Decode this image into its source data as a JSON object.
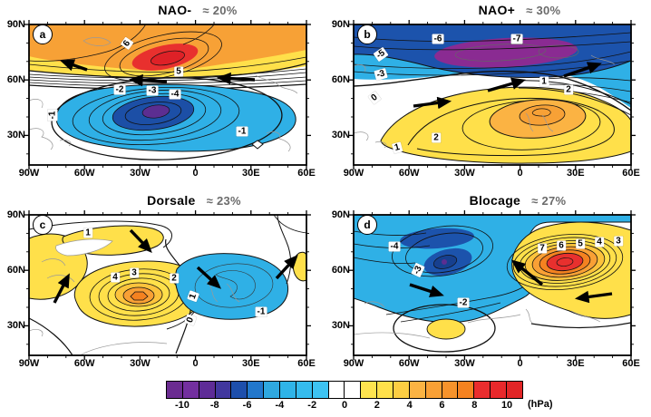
{
  "figure": {
    "description": "Four North-Atlantic weather regime composite maps with sea-level pressure anomaly contours",
    "unit_label": "(hPa)"
  },
  "axis": {
    "x": [
      "90W",
      "60W",
      "30W",
      "0",
      "30E",
      "60E"
    ],
    "y": [
      "90N",
      "60N",
      "30N"
    ]
  },
  "panels": [
    {
      "letter": "a",
      "title": "NAO-",
      "percent": "≈ 20%",
      "contour_labels": [
        "6",
        "5",
        "-2",
        "-3",
        "-4",
        "-1",
        "-1"
      ]
    },
    {
      "letter": "b",
      "title": "NAO+",
      "percent": "≈ 30%",
      "contour_labels": [
        "-6",
        "-7",
        "-5",
        "-3",
        "0",
        "1",
        "2",
        "2",
        "1"
      ]
    },
    {
      "letter": "c",
      "title": "Dorsale",
      "percent": "≈ 23%",
      "contour_labels": [
        "1",
        "4",
        "3",
        "2",
        "1",
        "0",
        "-1"
      ]
    },
    {
      "letter": "d",
      "title": "Blocage",
      "percent": "≈ 27%",
      "contour_labels": [
        "-4",
        "-3",
        "-2",
        "7",
        "6",
        "5",
        "4",
        "3"
      ]
    }
  ],
  "colorbar": {
    "tick_labels": [
      "-10",
      "-8",
      "-6",
      "-4",
      "-2",
      "0",
      "2",
      "4",
      "6",
      "8",
      "10"
    ],
    "unit": "(hPa)",
    "min": -11,
    "max": 11,
    "step": 1,
    "colors": [
      "#6B2C91",
      "#732F9F",
      "#5E2C97",
      "#41379E",
      "#1E4FAC",
      "#2277CC",
      "#2FA8DF",
      "#2FB4E8",
      "#35BCEE",
      "#3DC3F2",
      "#FFFFFF",
      "#FFFFFF",
      "#FFE44F",
      "#FFE04A",
      "#FDCE43",
      "#FBB343",
      "#F9A035",
      "#F7932B",
      "#F58220",
      "#EA2D2E",
      "#E8282B",
      "#E22526"
    ]
  },
  "chart_data": [
    {
      "type": "heatmap",
      "subtype": "filled-contour map",
      "panel": "a",
      "title": "NAO-",
      "frequency_label": "≈ 20%",
      "x_axis": {
        "label": "longitude",
        "ticks": [
          "90W",
          "60W",
          "30W",
          "0",
          "30E",
          "60E"
        ]
      },
      "y_axis": {
        "label": "latitude",
        "ticks": [
          "90N",
          "60N",
          "30N"
        ]
      },
      "units": "hPa",
      "contour_interval_hPa": 1,
      "anomaly_centers": [
        {
          "sign": "positive",
          "approx_lon": "30W",
          "approx_lat": "66N",
          "approx_peak_hPa": 8
        },
        {
          "sign": "negative",
          "approx_lon": "25W",
          "approx_lat": "42N",
          "approx_peak_hPa": -6
        }
      ],
      "labeled_contours_hPa": [
        6,
        5,
        -2,
        -3,
        -4,
        -1,
        -1
      ],
      "flow_arrows": "three westward arrows along ~55-60N"
    },
    {
      "type": "heatmap",
      "subtype": "filled-contour map",
      "panel": "b",
      "title": "NAO+",
      "frequency_label": "≈ 30%",
      "x_axis": {
        "label": "longitude",
        "ticks": [
          "90W",
          "60W",
          "30W",
          "0",
          "30E",
          "60E"
        ]
      },
      "y_axis": {
        "label": "latitude",
        "ticks": [
          "90N",
          "60N",
          "30N"
        ]
      },
      "units": "hPa",
      "contour_interval_hPa": 1,
      "anomaly_centers": [
        {
          "sign": "negative",
          "approx_lon": "10W",
          "approx_lat": "70N",
          "approx_peak_hPa": -8
        },
        {
          "sign": "positive",
          "approx_lon": "5E",
          "approx_lat": "40N",
          "approx_peak_hPa": 4
        }
      ],
      "labeled_contours_hPa": [
        -6,
        -7,
        -5,
        -3,
        0,
        1,
        2,
        2,
        1
      ],
      "flow_arrows": "three eastward/northeastward arrows along ~50-65N"
    },
    {
      "type": "heatmap",
      "subtype": "filled-contour map",
      "panel": "c",
      "title": "Dorsale",
      "frequency_label": "≈ 23%",
      "x_axis": {
        "label": "longitude",
        "ticks": [
          "90W",
          "60W",
          "30W",
          "0",
          "30E",
          "60E"
        ]
      },
      "y_axis": {
        "label": "latitude",
        "ticks": [
          "90N",
          "60N",
          "30N"
        ]
      },
      "units": "hPa",
      "contour_interval_hPa": 1,
      "anomaly_centers": [
        {
          "sign": "positive",
          "approx_lon": "30W",
          "approx_lat": "48N",
          "approx_peak_hPa": 7
        },
        {
          "sign": "negative",
          "approx_lon": "15E",
          "approx_lat": "58N",
          "approx_peak_hPa": -2
        }
      ],
      "labeled_contours_hPa": [
        1,
        4,
        3,
        2,
        1,
        0,
        -1
      ],
      "flow_arrows": "four arrows tracing a NE-SE-SE-NE wave train around the ridge"
    },
    {
      "type": "heatmap",
      "subtype": "filled-contour map",
      "panel": "d",
      "title": "Blocage",
      "frequency_label": "≈ 27%",
      "x_axis": {
        "label": "longitude",
        "ticks": [
          "90W",
          "60W",
          "30W",
          "0",
          "30E",
          "60E"
        ]
      },
      "y_axis": {
        "label": "latitude",
        "ticks": [
          "90N",
          "60N",
          "30N"
        ]
      },
      "units": "hPa",
      "contour_interval_hPa": 1,
      "anomaly_centers": [
        {
          "sign": "negative",
          "approx_lon": "45W",
          "approx_lat": "62N",
          "approx_peak_hPa": -7
        },
        {
          "sign": "positive",
          "approx_lon": "25E",
          "approx_lat": "63N",
          "approx_peak_hPa": 8
        }
      ],
      "labeled_contours_hPa": [
        -4,
        -3,
        -2,
        7,
        6,
        5,
        4,
        3
      ],
      "flow_arrows": "three arrows: southeastward over W Atlantic, northwestward and westward around the block"
    }
  ]
}
